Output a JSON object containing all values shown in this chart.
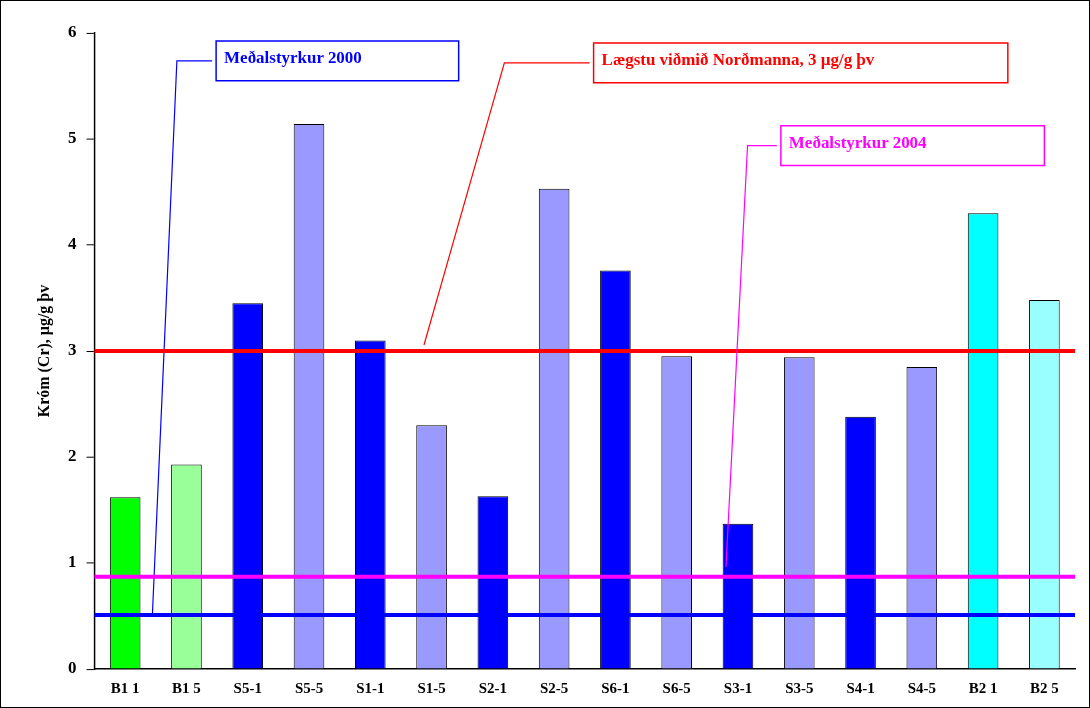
{
  "chart_data": {
    "type": "bar",
    "ylabel": "Króm (Cr), µg/g þv",
    "categories": [
      "B1 1",
      "B1 5",
      "S5-1",
      "S5-5",
      "S1-1",
      "S1-5",
      "S2-1",
      "S2-5",
      "S6-1",
      "S6-5",
      "S3-1",
      "S3-5",
      "S4-1",
      "S4-5",
      "B2 1",
      "B2 5"
    ],
    "values": [
      1.62,
      1.93,
      3.45,
      5.14,
      3.1,
      2.3,
      1.63,
      4.53,
      3.76,
      2.95,
      1.37,
      2.94,
      2.38,
      2.85,
      4.3,
      3.48
    ],
    "colors": [
      "#00ff00",
      "#99ff99",
      "#0000ff",
      "#9999ff",
      "#0000ff",
      "#9999ff",
      "#0000ff",
      "#9999ff",
      "#0000ff",
      "#9999ff",
      "#0000ff",
      "#9999ff",
      "#0000ff",
      "#9999ff",
      "#00ffff",
      "#99ffff"
    ],
    "ylim": [
      0,
      6
    ],
    "yticks": [
      0,
      1,
      2,
      3,
      4,
      5,
      6
    ],
    "grid": false,
    "legend": false,
    "ref_lines": [
      {
        "axis": "y",
        "value": 0.51,
        "label": "Meðalstyrkur 2000",
        "color": "#0000ff"
      },
      {
        "axis": "y",
        "value": 3,
        "label": "Lægstu viðmið Norðmanna, 3 µg/g þv",
        "color": "#ff0000"
      },
      {
        "axis": "y",
        "value": 0.87,
        "label": "Meðalstyrkur 2004",
        "color": "#ff00ff"
      }
    ]
  }
}
